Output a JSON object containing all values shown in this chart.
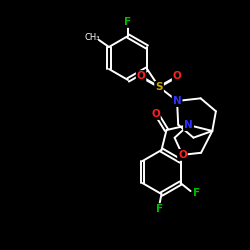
{
  "bg_color": "#000000",
  "bond_color": "#ffffff",
  "atom_colors": {
    "F": "#00bb00",
    "O": "#ff2020",
    "S": "#ccaa00",
    "N": "#3030ff"
  },
  "font_size_atom": 7.5,
  "line_width": 1.4,
  "figsize": [
    2.5,
    2.5
  ],
  "dpi": 100
}
